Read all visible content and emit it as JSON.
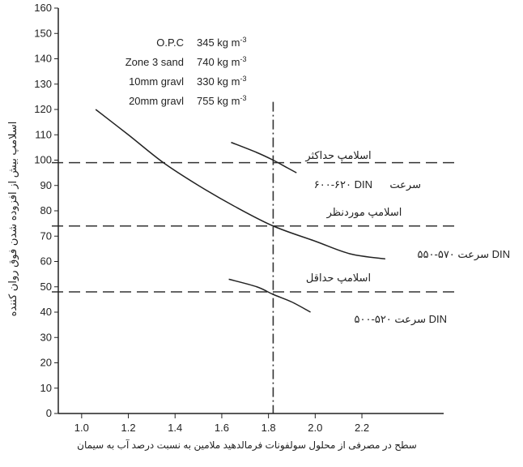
{
  "chart_data": {
    "type": "line",
    "xlabel": "سطح در مصرفی از محلول سولفونات فرمالدهید ملامین به نسبت درصد آب به سیمان",
    "ylabel": "اسلامپ بیش از افزوده شدن فوق روان کننده",
    "xlim": [
      0.9,
      2.55
    ],
    "ylim": [
      0,
      160
    ],
    "x_ticks": [
      "1.0",
      "1.2",
      "1.4",
      "1.6",
      "1.8",
      "2.0",
      "2.2"
    ],
    "y_ticks": [
      "0",
      "10",
      "20",
      "30",
      "40",
      "50",
      "60",
      "70",
      "80",
      "90",
      "100",
      "110",
      "120",
      "130",
      "140",
      "150",
      "160"
    ],
    "mix": [
      {
        "name": "O.P.C",
        "value": "345 kg m",
        "exp": "-3"
      },
      {
        "name": "Zone 3 sand",
        "value": "740 kg m",
        "exp": "-3"
      },
      {
        "name": "10mm gravl",
        "value": "330 kg m",
        "exp": "-3"
      },
      {
        "name": "20mm gravl",
        "value": "755 kg m",
        "exp": "-3"
      }
    ],
    "reference_lines": [
      {
        "y": 99,
        "label": "اسلامپ حداکثر"
      },
      {
        "y": 74,
        "label": "اسلامپ موردنظر"
      },
      {
        "y": 48,
        "label": "اسلامپ حداقل"
      }
    ],
    "vertical_line": {
      "x": 1.82
    },
    "series": [
      {
        "name": "سرعت DIN ۶۰۰-۶۲۰",
        "x": [
          1.64,
          1.75,
          1.82,
          1.88,
          1.92
        ],
        "y": [
          107,
          103,
          100,
          97,
          95
        ]
      },
      {
        "name": "سرعت ۵۷۰-۵۵۰ DIN",
        "x": [
          1.06,
          1.2,
          1.35,
          1.5,
          1.65,
          1.82,
          2.0,
          2.15,
          2.3
        ],
        "y": [
          120,
          110,
          99,
          90,
          82,
          74,
          68,
          63,
          61
        ]
      },
      {
        "name": "سرعت ۵۲۰-۵۰۰ DIN",
        "x": [
          1.63,
          1.75,
          1.82,
          1.9,
          1.98
        ],
        "y": [
          53,
          50,
          47,
          44,
          40
        ]
      }
    ],
    "curve_labels": [
      {
        "text": "۶۰۰-۶۲۰  DIN",
        "sub": "سرعت"
      },
      {
        "text": "سرعت ۵۷۰-۵۵۰ DIN"
      },
      {
        "text": "سرعت ۵۲۰-۵۰۰ DIN"
      }
    ]
  }
}
